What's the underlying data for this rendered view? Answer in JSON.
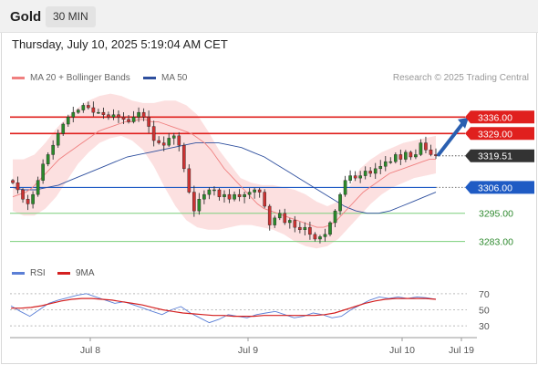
{
  "header": {
    "instrument": "Gold",
    "interval": "30 MIN"
  },
  "timestamp": "Thursday, July 10, 2025 5:19:04 AM CET",
  "legend": {
    "ma20": {
      "label": "MA 20 + Bollinger Bands",
      "color": "#f08080"
    },
    "ma50": {
      "label": "MA 50",
      "color": "#2e4f9e"
    }
  },
  "copyright": "Research © 2025 Trading Central",
  "rsi_legend": {
    "rsi": {
      "label": "RSI",
      "color": "#5b7fd6"
    },
    "ma9": {
      "label": "9MA",
      "color": "#d42020"
    }
  },
  "chart_data": [
    {
      "type": "candlestick",
      "title": "Gold 30 MIN",
      "ylim": [
        3277,
        3347
      ],
      "x_ticks": [
        "Jul 8",
        "Jul 9",
        "Jul 10",
        "Jul 19"
      ],
      "levels": [
        {
          "value": 3336.0,
          "label": "3336.00",
          "kind": "resistance",
          "color": "#e0201e"
        },
        {
          "value": 3329.0,
          "label": "3329.00",
          "kind": "resistance",
          "color": "#e0201e"
        },
        {
          "value": 3319.51,
          "label": "3319.51",
          "kind": "last",
          "color": "#333333"
        },
        {
          "value": 3306.0,
          "label": "3306.00",
          "kind": "pivot",
          "color": "#1f5bc4"
        },
        {
          "value": 3295.0,
          "label": "3295.00",
          "kind": "support",
          "color": "#2f9a2f"
        },
        {
          "value": 3283.0,
          "label": "3283.00",
          "kind": "support",
          "color": "#2f9a2f"
        }
      ],
      "forecast_arrow": {
        "from": 3320,
        "to": 3335,
        "direction": "up"
      },
      "closes": [
        3308,
        3305,
        3301,
        3299,
        3303,
        3309,
        3316,
        3320,
        3324,
        3329,
        3333,
        3336,
        3338,
        3339,
        3341,
        3340,
        3338,
        3338,
        3337,
        3336,
        3337,
        3336,
        3335,
        3334,
        3336,
        3338,
        3336,
        3332,
        3326,
        3325,
        3324,
        3327,
        3328,
        3324,
        3314,
        3304,
        3296,
        3301,
        3303,
        3305,
        3305,
        3302,
        3303,
        3301,
        3303,
        3302,
        3303,
        3304,
        3305,
        3304,
        3298,
        3290,
        3293,
        3295,
        3291,
        3292,
        3289,
        3288,
        3289,
        3286,
        3284,
        3285,
        3286,
        3291,
        3296,
        3303,
        3309,
        3311,
        3310,
        3311,
        3313,
        3312,
        3314,
        3315,
        3317,
        3317,
        3320,
        3318,
        3321,
        3319,
        3320,
        3325,
        3322,
        3320,
        3319.51
      ],
      "ma20": [
        3302,
        3303,
        3304,
        3306,
        3309,
        3312,
        3315,
        3318,
        3320,
        3322,
        3324,
        3326,
        3328,
        3330,
        3331,
        3332,
        3333,
        3334,
        3334,
        3335,
        3335,
        3334,
        3334,
        3333,
        3332,
        3331,
        3330,
        3329,
        3327,
        3325,
        3322,
        3318,
        3314,
        3311,
        3308,
        3305,
        3302,
        3299,
        3297,
        3296,
        3295,
        3294,
        3293,
        3292,
        3291,
        3290,
        3289,
        3289,
        3290,
        3292,
        3295,
        3298,
        3301,
        3304,
        3306,
        3308,
        3310,
        3312,
        3313,
        3314,
        3315,
        3316,
        3317,
        3318,
        3318
      ],
      "ma50": [
        3306,
        3305,
        3305,
        3306,
        3307,
        3309,
        3311,
        3313,
        3315,
        3317,
        3319,
        3320,
        3321,
        3322,
        3323,
        3324,
        3325,
        3325,
        3325,
        3324,
        3323,
        3321,
        3319,
        3316,
        3313,
        3310,
        3307,
        3304,
        3301,
        3298,
        3296,
        3295,
        3295,
        3296,
        3298,
        3300,
        3302,
        3304
      ],
      "bollinger_upper": [
        3318,
        3318,
        3320,
        3325,
        3331,
        3336,
        3340,
        3343,
        3345,
        3346,
        3345,
        3343,
        3342,
        3342,
        3343,
        3343,
        3341,
        3337,
        3330,
        3322,
        3316,
        3310,
        3308,
        3307,
        3307,
        3306,
        3305,
        3303,
        3300,
        3298,
        3300,
        3306,
        3314,
        3318,
        3321,
        3323,
        3325,
        3326,
        3327,
        3328
      ],
      "bollinger_lower": [
        3296,
        3294,
        3294,
        3297,
        3302,
        3309,
        3316,
        3321,
        3325,
        3327,
        3328,
        3326,
        3322,
        3315,
        3306,
        3298,
        3292,
        3289,
        3288,
        3288,
        3289,
        3290,
        3290,
        3289,
        3288,
        3286,
        3283,
        3281,
        3280,
        3281,
        3284,
        3289,
        3294,
        3299,
        3303,
        3306,
        3308,
        3310,
        3311,
        3312
      ]
    },
    {
      "type": "line",
      "title": "RSI",
      "ylim": [
        20,
        80
      ],
      "y_ticks": [
        70,
        50,
        30
      ],
      "series": [
        {
          "name": "RSI",
          "values": [
            55,
            48,
            42,
            50,
            58,
            62,
            65,
            68,
            70,
            66,
            62,
            58,
            60,
            56,
            52,
            48,
            44,
            50,
            54,
            46,
            40,
            34,
            38,
            44,
            42,
            40,
            44,
            46,
            48,
            44,
            40,
            42,
            46,
            44,
            40,
            42,
            50,
            56,
            62,
            66,
            64,
            66,
            64,
            66,
            65,
            63
          ]
        },
        {
          "name": "9MA",
          "values": [
            52,
            52,
            53,
            55,
            58,
            61,
            63,
            64,
            64,
            63,
            62,
            60,
            58,
            56,
            53,
            50,
            48,
            46,
            45,
            44,
            43,
            43,
            42,
            42,
            42,
            43,
            43,
            43,
            43,
            43,
            43,
            44,
            46,
            50,
            54,
            58,
            61,
            63,
            64,
            64,
            64,
            64,
            63
          ]
        }
      ]
    }
  ]
}
